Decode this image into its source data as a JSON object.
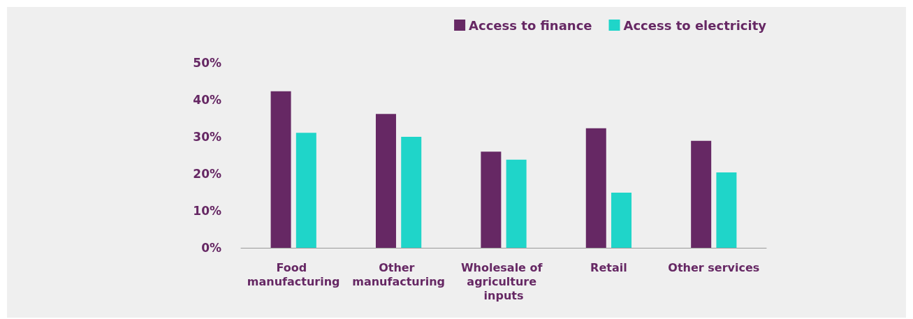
{
  "chart_data": {
    "type": "bar",
    "categories": [
      "Food manufacturing",
      "Other manufacturing",
      "Wholesale of agriculture inputs",
      "Retail",
      "Other services"
    ],
    "series": [
      {
        "name": "Access to finance",
        "color": "#662864",
        "values": [
          42.3,
          36.2,
          26.0,
          32.3,
          28.9
        ]
      },
      {
        "name": "Access to electricity",
        "color": "#1fd5c9",
        "values": [
          31.1,
          30.0,
          23.8,
          14.9,
          20.4
        ]
      }
    ],
    "ylim": [
      0,
      50
    ],
    "yticks": [
      {
        "value": 0,
        "label": "0%"
      },
      {
        "value": 10,
        "label": "10%"
      },
      {
        "value": 20,
        "label": "20%"
      },
      {
        "value": 30,
        "label": "30%"
      },
      {
        "value": 40,
        "label": "40%"
      },
      {
        "value": 50,
        "label": "50%"
      }
    ],
    "grid": false,
    "legend": "top right"
  }
}
